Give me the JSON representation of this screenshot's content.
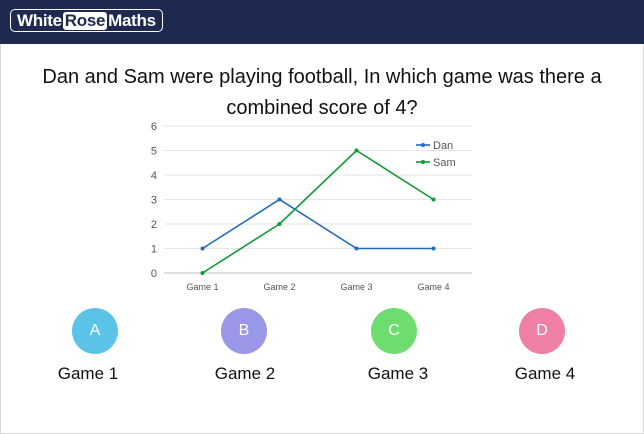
{
  "header": {
    "logo_part1": "White",
    "logo_part2": "Rose",
    "logo_part3": "Maths",
    "background": "#1e2a4f"
  },
  "question": "Dan and Sam were playing football, In which game was there a combined score of 4?",
  "chart_data": {
    "type": "line",
    "title": "",
    "xlabel": "",
    "ylabel": "",
    "categories": [
      "Game 1",
      "Game 2",
      "Game 3",
      "Game 4"
    ],
    "ylim": [
      0,
      6
    ],
    "yticks": [
      "0",
      "1",
      "2",
      "3",
      "4",
      "5",
      "6"
    ],
    "grid": true,
    "legend_position": "top-right",
    "series": [
      {
        "name": "Dan",
        "values": [
          1,
          3,
          1,
          1
        ],
        "color": "#1f6bbf"
      },
      {
        "name": "Sam",
        "values": [
          0,
          2,
          5,
          3
        ],
        "color": "#119933"
      }
    ]
  },
  "options": [
    {
      "letter": "A",
      "label": "Game 1",
      "color": "#5bc3e8"
    },
    {
      "letter": "B",
      "label": "Game 2",
      "color": "#9a97e8"
    },
    {
      "letter": "C",
      "label": "Game 3",
      "color": "#6fdc6f"
    },
    {
      "letter": "D",
      "label": "Game 4",
      "color": "#f07fa6"
    }
  ]
}
